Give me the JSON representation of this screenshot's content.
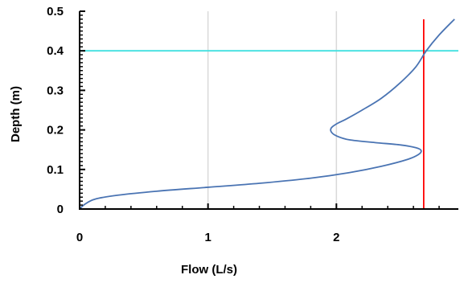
{
  "chart_data": {
    "type": "line",
    "title": "",
    "xlabel": "Flow (L/s)",
    "ylabel": "Depth (m)",
    "xlim": [
      0,
      2.95
    ],
    "ylim": [
      0,
      0.5
    ],
    "x_ticks": [
      "0",
      "1",
      "2"
    ],
    "y_ticks": [
      "0",
      "0.1",
      "0.2",
      "0.3",
      "0.4",
      "0.5"
    ],
    "x_tick_values": [
      0,
      1,
      2
    ],
    "y_tick_values": [
      0,
      0.1,
      0.2,
      0.3,
      0.4,
      0.5
    ],
    "grid": "vertical",
    "legend": "none",
    "series": [
      {
        "color": "#4a74b3",
        "x": [
          0.0,
          0.04,
          0.12,
          0.3,
          0.6,
          1.0,
          1.4,
          1.8,
          2.1,
          2.35,
          2.55,
          2.64,
          2.66,
          2.62,
          2.5,
          2.3,
          2.1,
          2.0,
          1.96,
          1.96,
          2.0,
          2.08,
          2.2,
          2.35,
          2.5,
          2.62,
          2.7,
          2.8,
          2.92
        ],
        "y": [
          0.0,
          0.012,
          0.025,
          0.035,
          0.045,
          0.055,
          0.065,
          0.078,
          0.092,
          0.108,
          0.125,
          0.138,
          0.148,
          0.155,
          0.162,
          0.168,
          0.175,
          0.185,
          0.195,
          0.205,
          0.215,
          0.228,
          0.25,
          0.28,
          0.32,
          0.36,
          0.4,
          0.44,
          0.48
        ]
      }
    ],
    "reference_lines": [
      {
        "orientation": "horizontal",
        "value": 0.4,
        "color": "#40e0e0"
      },
      {
        "orientation": "vertical",
        "value": 2.68,
        "color": "#ff0000"
      }
    ]
  }
}
